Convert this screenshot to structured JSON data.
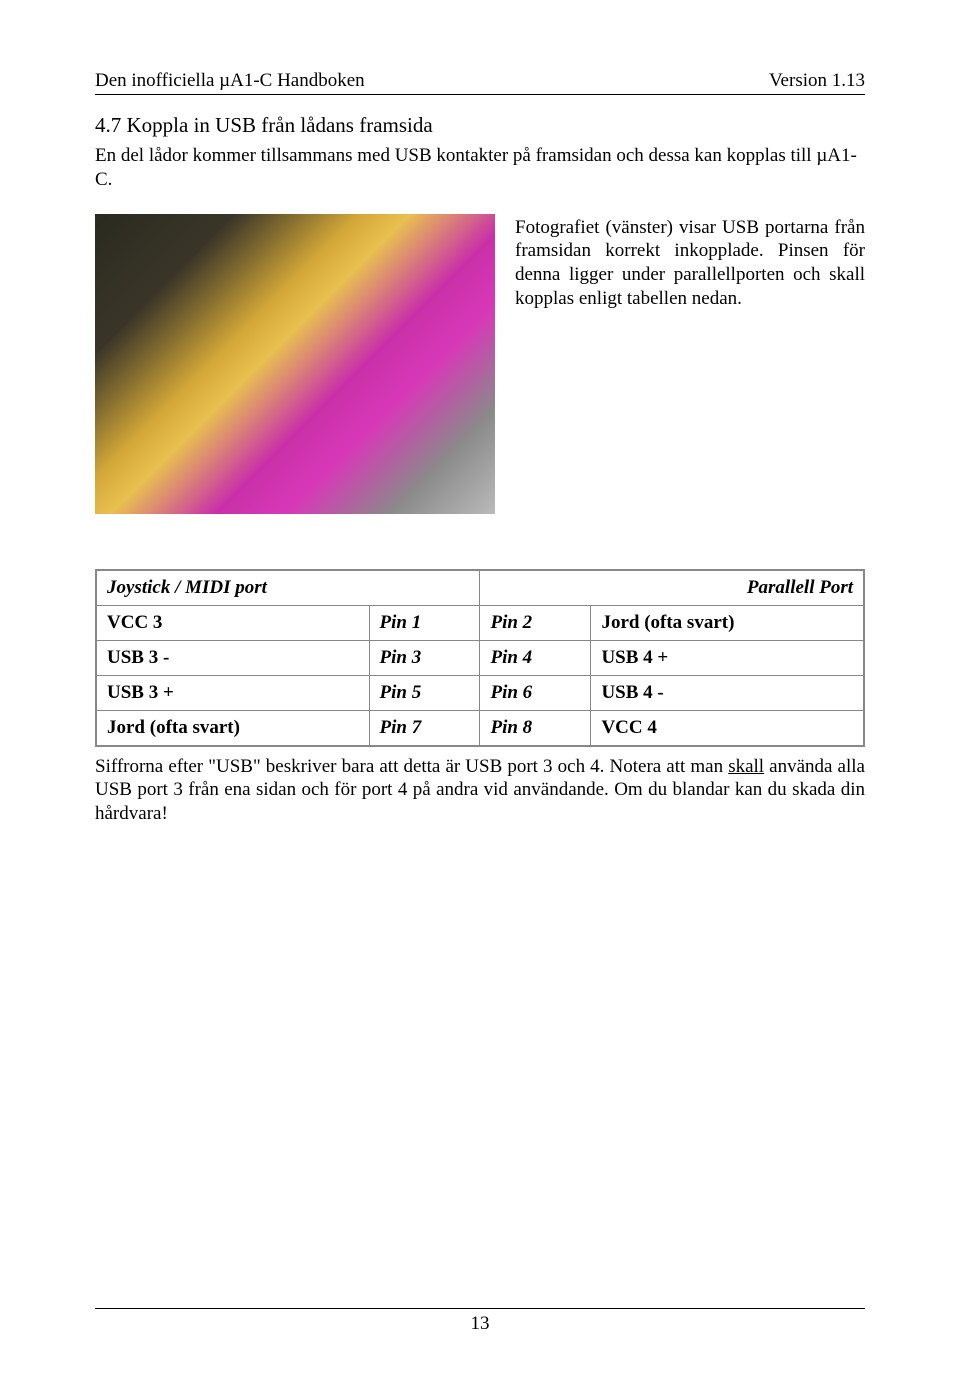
{
  "header": {
    "left": "Den inofficiella µA1-C Handboken",
    "right": "Version 1.13"
  },
  "section": {
    "title": "4.7 Koppla in USB från lådans framsida",
    "intro": "En del lådor kommer tillsammans med USB kontakter på framsidan och dessa kan kopplas till µA1-C."
  },
  "photo_caption": "Fotografiet (vänster) visar USB portarna från framsidan korrekt inkopplade. Pinsen för denna ligger under parallellporten och skall kopplas enligt tabellen nedan.",
  "table": {
    "header_left": "Joystick / MIDI port",
    "header_right": "Parallell Port",
    "rows": [
      {
        "c1": "VCC 3",
        "c2": "Pin 1",
        "c3": "Pin 2",
        "c4": "Jord (ofta svart)"
      },
      {
        "c1": "USB 3  -",
        "c2": "Pin 3",
        "c3": "Pin 4",
        "c4": "USB 4 +"
      },
      {
        "c1": "USB 3  +",
        "c2": "Pin 5",
        "c3": "Pin 6",
        "c4": "USB 4 -"
      },
      {
        "c1": "Jord (ofta svart)",
        "c2": "Pin 7",
        "c3": "Pin 8",
        "c4": "VCC 4"
      }
    ]
  },
  "note": {
    "part1": "Siffrorna efter \"USB\" beskriver bara att detta är USB port 3 och 4. Notera att man ",
    "underlined": "skall",
    "part2": " använda alla USB port 3 från ena sidan och för port 4 på andra vid användande. Om du blandar kan du skada din hårdvara!"
  },
  "footer": {
    "page_number": "13"
  },
  "colors": {
    "text": "#000000",
    "border": "#888888",
    "background": "#ffffff"
  },
  "typography": {
    "body_fontsize_pt": 14,
    "title_fontsize_pt": 16,
    "font_family": "Times New Roman"
  }
}
